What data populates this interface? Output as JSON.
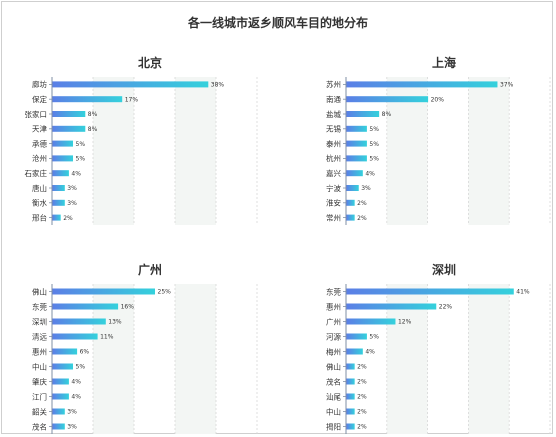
{
  "title": "各一线城市返乡顺风车目的地分布",
  "colors": {
    "bar_start": "#5b7fe6",
    "bar_end": "#34d1dc",
    "stripe": "#f3f6f4",
    "grid": "#d8d8d8",
    "axis": "#7f8fa6"
  },
  "chart_data": [
    {
      "type": "bar",
      "orientation": "horizontal",
      "title": "北京",
      "categories": [
        "廊坊",
        "保定",
        "张家口",
        "天津",
        "承德",
        "沧州",
        "石家庄",
        "唐山",
        "衡水",
        "邢台"
      ],
      "values": [
        38,
        17,
        8,
        8,
        5,
        5,
        4,
        3,
        3,
        2
      ],
      "data_labels": [
        "38%",
        "17%",
        "8%",
        "8%",
        "5%",
        "5%",
        "4%",
        "3%",
        "3%",
        "2%"
      ],
      "xlim": [
        0,
        50
      ],
      "grid": true
    },
    {
      "type": "bar",
      "orientation": "horizontal",
      "title": "上海",
      "categories": [
        "苏州",
        "南通",
        "盐城",
        "无锡",
        "泰州",
        "杭州",
        "嘉兴",
        "宁波",
        "淮安",
        "常州"
      ],
      "values": [
        37,
        20,
        8,
        5,
        5,
        5,
        4,
        3,
        2,
        2
      ],
      "data_labels": [
        "37%",
        "20%",
        "8%",
        "5%",
        "5%",
        "5%",
        "4%",
        "3%",
        "2%",
        "2%"
      ],
      "xlim": [
        0,
        50
      ],
      "grid": true
    },
    {
      "type": "bar",
      "orientation": "horizontal",
      "title": "广州",
      "categories": [
        "佛山",
        "东莞",
        "深圳",
        "清远",
        "惠州",
        "中山",
        "肇庆",
        "江门",
        "韶关",
        "茂名"
      ],
      "values": [
        25,
        16,
        13,
        11,
        6,
        5,
        4,
        4,
        3,
        3
      ],
      "data_labels": [
        "25%",
        "16%",
        "13%",
        "11%",
        "6%",
        "5%",
        "4%",
        "4%",
        "3%",
        "3%"
      ],
      "xlim": [
        0,
        50
      ],
      "grid": true
    },
    {
      "type": "bar",
      "orientation": "horizontal",
      "title": "深圳",
      "categories": [
        "东莞",
        "惠州",
        "广州",
        "河源",
        "梅州",
        "佛山",
        "茂名",
        "汕尾",
        "中山",
        "揭阳"
      ],
      "values": [
        41,
        22,
        12,
        5,
        4,
        2,
        2,
        2,
        2,
        2
      ],
      "data_labels": [
        "41%",
        "22%",
        "12%",
        "5%",
        "4%",
        "2%",
        "2%",
        "2%",
        "2%",
        "2%"
      ],
      "xlim": [
        0,
        50
      ],
      "grid": true
    }
  ]
}
